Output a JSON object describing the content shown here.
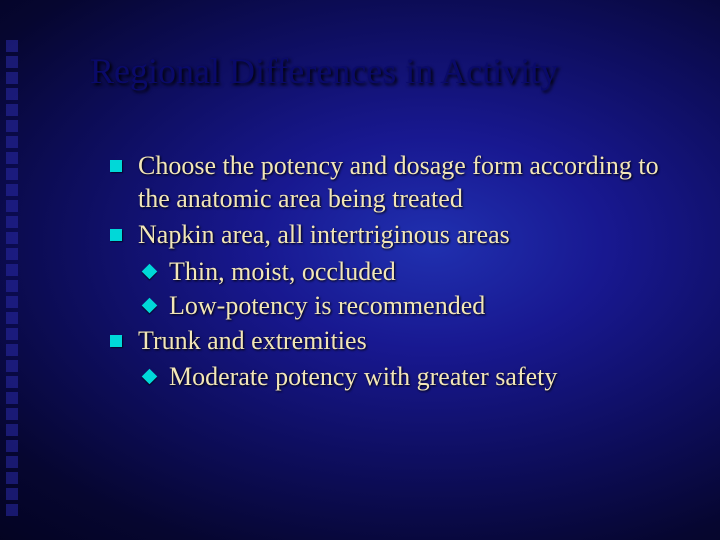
{
  "slide": {
    "title": "Regional Differences in Activity",
    "title_color": "#0a0a6a",
    "title_fontsize": 36,
    "body_color": "#f2e6b8",
    "body_fontsize": 26,
    "bullet_color": "#00d8d8",
    "background_gradient": {
      "center": "#2030b0",
      "edge": "#000010"
    },
    "decor_square_color": "#2a2aa8",
    "bullets": [
      {
        "text": "Choose the potency and dosage form according to the anatomic area being treated",
        "sub": []
      },
      {
        "text": "Napkin area, all intertriginous areas",
        "sub": [
          {
            "text": "Thin, moist, occluded"
          },
          {
            "text": "Low-potency is recommended"
          }
        ]
      },
      {
        "text": "Trunk and extremities",
        "sub": [
          {
            "text": "Moderate potency with greater safety"
          }
        ]
      }
    ]
  }
}
